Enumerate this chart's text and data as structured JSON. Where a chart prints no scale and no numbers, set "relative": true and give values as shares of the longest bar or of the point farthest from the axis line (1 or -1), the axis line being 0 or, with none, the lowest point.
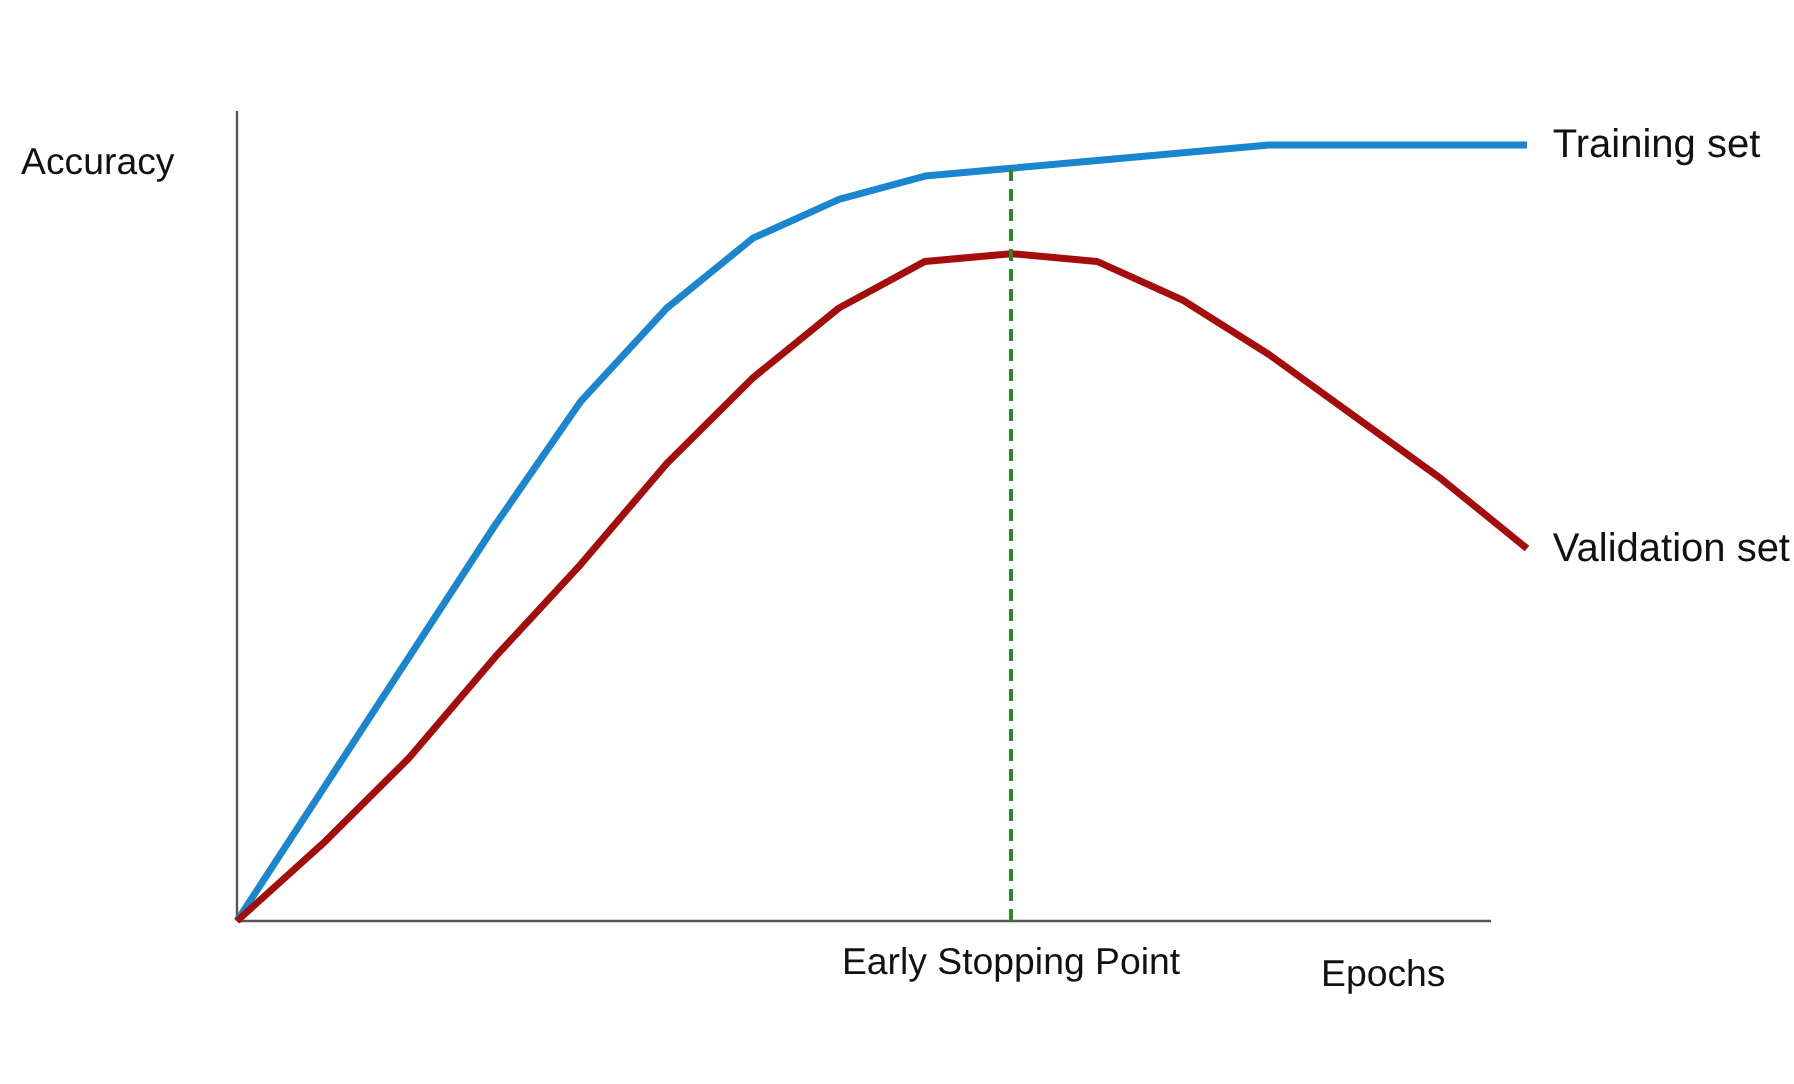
{
  "chart_data": {
    "type": "line",
    "relative": true,
    "tick_labels": false,
    "legend": "right",
    "xlabel": "Epochs",
    "ylabel": "Accuracy",
    "categories": [
      null,
      null,
      null,
      null,
      null,
      null,
      null,
      null,
      null,
      null,
      null,
      null,
      null,
      null,
      null,
      null
    ],
    "series": [
      {
        "name": "Training set",
        "color": "#1a86d0",
        "values": [
          0,
          0.17,
          0.34,
          0.51,
          0.67,
          0.79,
          0.88,
          0.93,
          0.96,
          0.97,
          0.98,
          0.99,
          1.0,
          1.0,
          1.0,
          1.0
        ]
      },
      {
        "name": "Validation set",
        "color": "#a50d0d",
        "values": [
          0,
          0.1,
          0.21,
          0.34,
          0.46,
          0.59,
          0.7,
          0.79,
          0.85,
          0.86,
          0.85,
          0.8,
          0.73,
          0.65,
          0.57,
          0.48
        ]
      }
    ],
    "annotations": [
      "Early Stopping Point"
    ]
  }
}
